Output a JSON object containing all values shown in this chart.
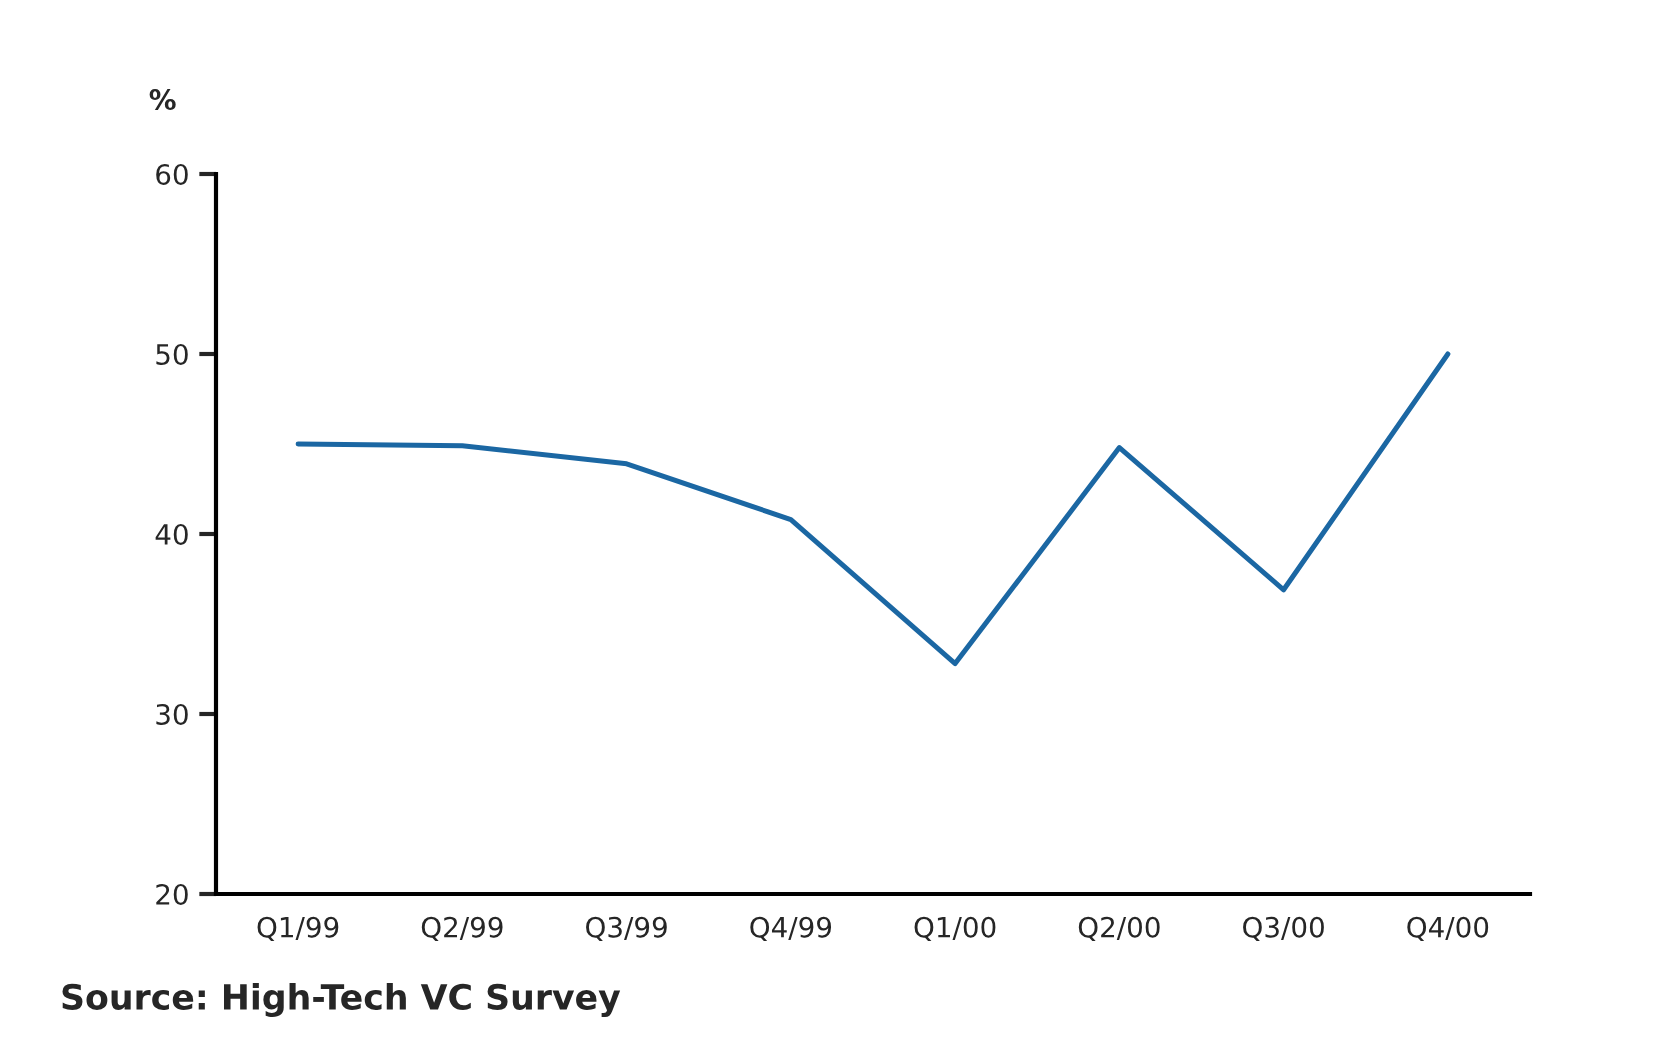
{
  "chart_data": {
    "type": "line",
    "ylabel": "%",
    "categories": [
      "Q1/99",
      "Q2/99",
      "Q3/99",
      "Q4/99",
      "Q1/00",
      "Q2/00",
      "Q3/00",
      "Q4/00"
    ],
    "series": [
      {
        "color": "#1b67a3",
        "values": [
          45,
          44.9,
          43.9,
          40.8,
          32.8,
          44.8,
          36.9,
          50
        ]
      }
    ],
    "ylim": [
      20,
      60
    ],
    "yticks": [
      20,
      30,
      40,
      50,
      60
    ],
    "grid": false,
    "legend": false,
    "marker": "none",
    "line_style": "solid",
    "annotations": [
      "Source: High-Tech VC Survey"
    ]
  }
}
